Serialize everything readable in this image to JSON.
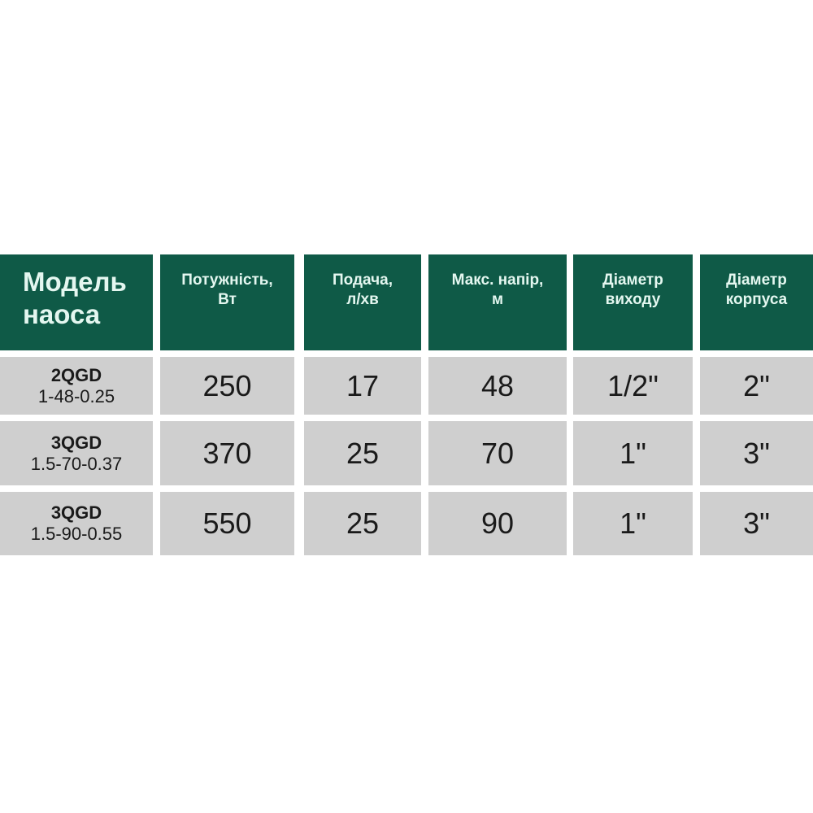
{
  "table": {
    "headers": [
      {
        "line1": "Модель",
        "line2": "наоса"
      },
      {
        "line1": "Потужність,",
        "line2": "Вт"
      },
      {
        "line1": "Подача,",
        "line2": "л/хв"
      },
      {
        "line1": "Макс. напір,",
        "line2": "м"
      },
      {
        "line1": "Діаметр",
        "line2": "виходу"
      },
      {
        "line1": "Діаметр",
        "line2": "корпуса"
      }
    ],
    "rows": [
      {
        "model": "2QGD",
        "model_sub": "1-48-0.25",
        "power": "250",
        "flow": "17",
        "head": "48",
        "outlet": "1/2\"",
        "body": "2\""
      },
      {
        "model": "3QGD",
        "model_sub": "1.5-70-0.37",
        "power": "370",
        "flow": "25",
        "head": "70",
        "outlet": "1\"",
        "body": "3\""
      },
      {
        "model": "3QGD",
        "model_sub": "1.5-90-0.55",
        "power": "550",
        "flow": "25",
        "head": "90",
        "outlet": "1\"",
        "body": "3\""
      }
    ]
  },
  "colors": {
    "header_bg": "#0f5a47",
    "header_text": "#e4f7f0",
    "cell_bg": "#cfcfcf"
  }
}
